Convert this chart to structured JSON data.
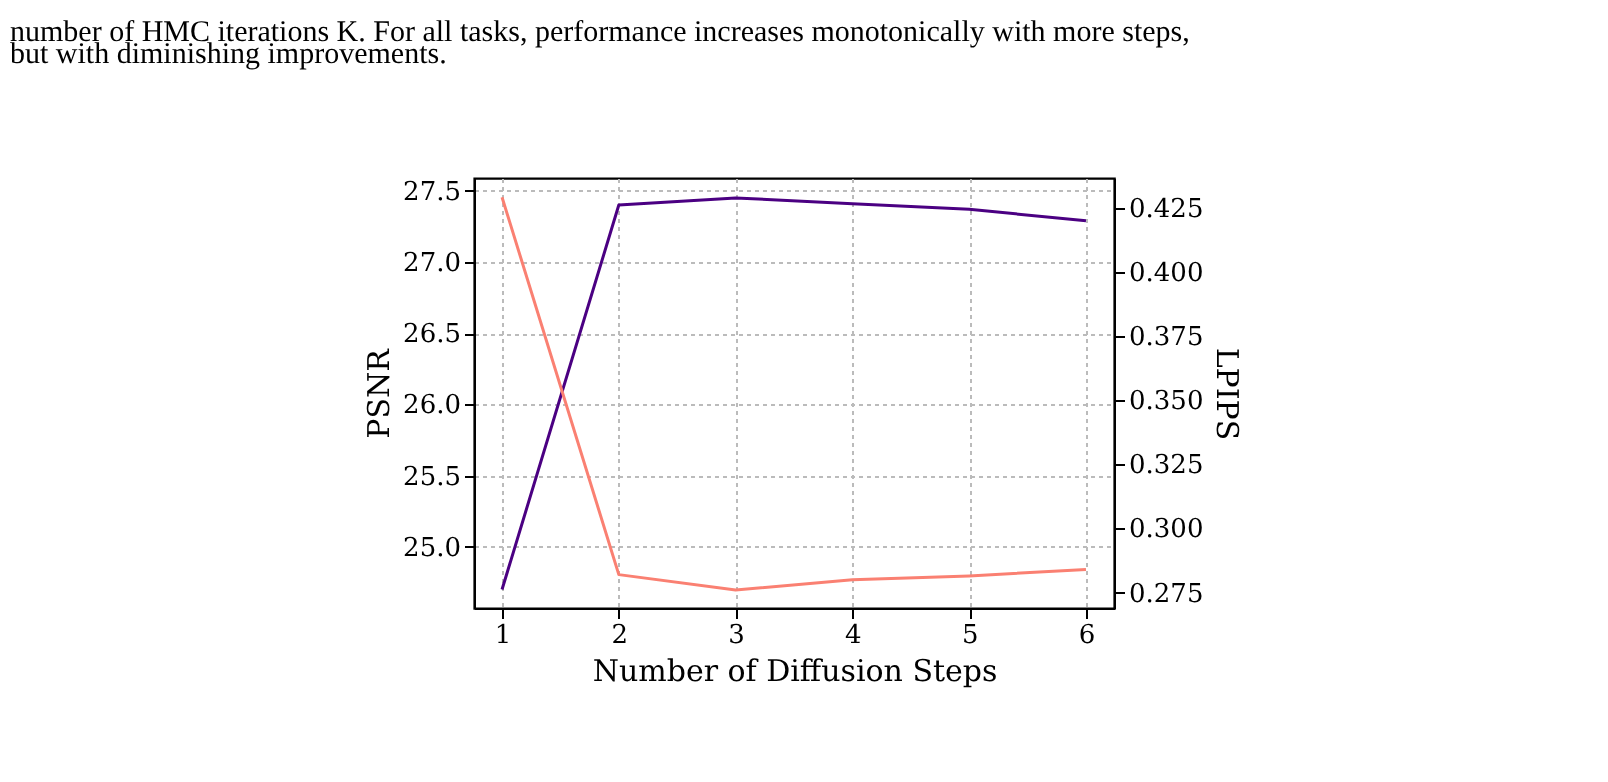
{
  "chart_data": {
    "type": "line",
    "annotations": [
      "number of HMC iterations K. For all tasks, performance increases monotonically with more steps,",
      "but with diminishing improvements."
    ],
    "xlabel": "Number of Diffusion Steps",
    "ylabel": "PSNR",
    "y2label": "LPIPS",
    "x": [
      1,
      2,
      3,
      4,
      5,
      6
    ],
    "series": [
      {
        "color": "#4b0082",
        "values": [
          24.7,
          27.4,
          27.45,
          27.41,
          27.37,
          27.29
        ]
      },
      {
        "color": "#fa8072",
        "axis": "y2",
        "values": [
          0.429,
          0.282,
          0.276,
          0.28,
          0.2815,
          0.284
        ]
      }
    ],
    "xlim": [
      0.76,
      6.24
    ],
    "xticks": [
      1,
      2,
      3,
      4,
      5,
      6
    ],
    "ylim": [
      24.57,
      27.59
    ],
    "yticks": [
      {
        "value": 25,
        "label": "25.0"
      },
      {
        "value": 25.5,
        "label": "25.5"
      },
      {
        "value": 26,
        "label": "26.0"
      },
      {
        "value": 26.5,
        "label": "26.5"
      },
      {
        "value": 27,
        "label": "27.0"
      },
      {
        "value": 27.5,
        "label": "27.5"
      }
    ],
    "y2lim": [
      0.269,
      0.4365
    ],
    "y2ticks": [
      {
        "value": 0.275,
        "label": "0.275"
      },
      {
        "value": 0.3,
        "label": "0.300"
      },
      {
        "value": 0.325,
        "label": "0.325"
      },
      {
        "value": 0.35,
        "label": "0.350"
      },
      {
        "value": 0.375,
        "label": "0.375"
      },
      {
        "value": 0.4,
        "label": "0.400"
      },
      {
        "value": 0.425,
        "label": "0.425"
      }
    ],
    "grid": true,
    "line_style": "solid",
    "marker": "none"
  }
}
